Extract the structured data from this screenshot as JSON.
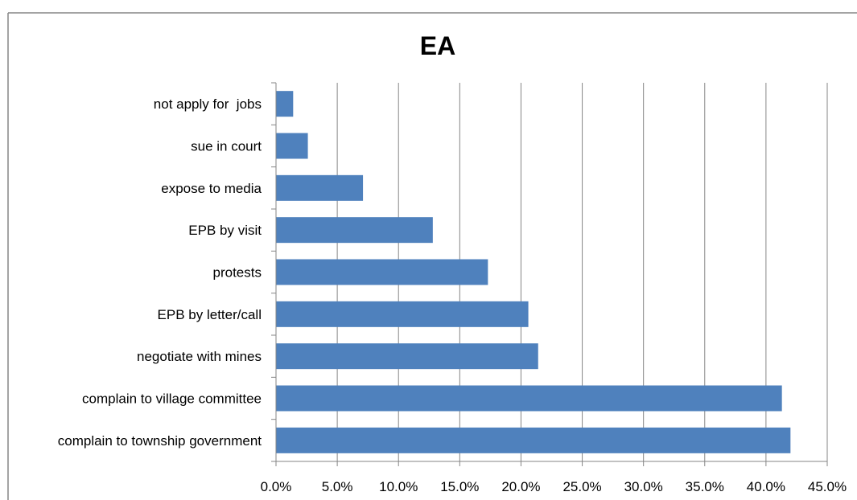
{
  "chart_data": {
    "type": "bar",
    "orientation": "horizontal",
    "title": "EA",
    "xlabel": "",
    "ylabel": "",
    "categories": [
      "not apply for  jobs",
      "sue in court",
      "expose to media",
      "EPB by visit",
      "protests",
      "EPB by letter/call",
      "negotiate with mines",
      "complain to village committee",
      "complain to township government"
    ],
    "values": [
      1.4,
      2.6,
      7.1,
      12.8,
      17.3,
      20.6,
      21.4,
      41.3,
      42.0
    ],
    "xlim": [
      0,
      45
    ],
    "x_ticks": [
      0,
      5,
      10,
      15,
      20,
      25,
      30,
      35,
      40,
      45
    ],
    "x_tick_labels": [
      "0.0%",
      "5.0%",
      "10.0%",
      "15.0%",
      "20.0%",
      "25.0%",
      "30.0%",
      "35.0%",
      "40.0%",
      "45.0%"
    ],
    "grid": "vertical",
    "legend": "none",
    "colors": {
      "bar": "#4f81bd",
      "grid": "#868686",
      "axis": "#868686",
      "frame": "#868686"
    }
  }
}
